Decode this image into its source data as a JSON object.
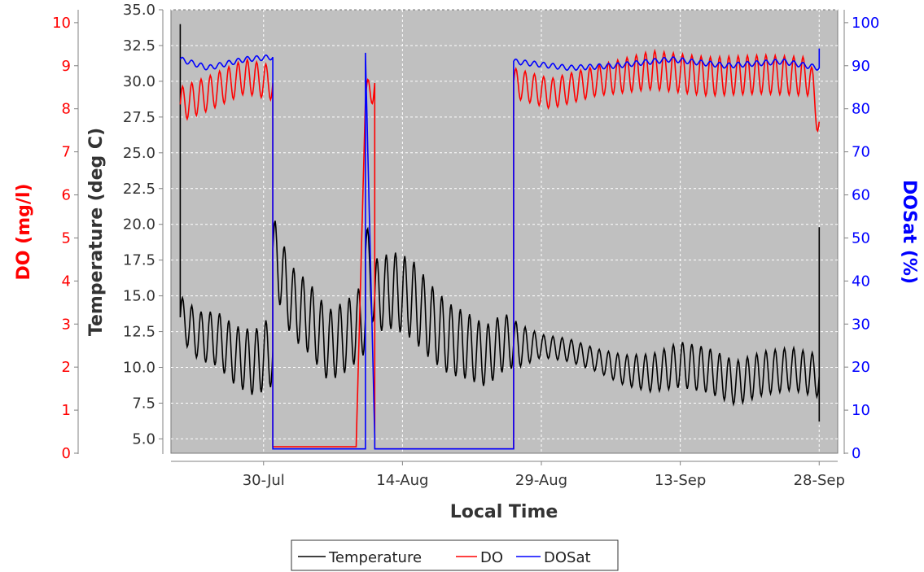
{
  "chart_data": {
    "type": "line",
    "title": "",
    "xlabel": "Local Time",
    "x_ticks": [
      "30-Jul",
      "14-Aug",
      "29-Aug",
      "13-Sep",
      "28-Sep"
    ],
    "x_range": [
      "2016-07-20",
      "2016-09-30"
    ],
    "grid": true,
    "plot_background": "#c0c0c0",
    "legend_position": "bottom-center",
    "axes": {
      "temperature": {
        "label": "Temperature (deg C)",
        "side": "left-inner",
        "range": [
          4.0,
          35.0
        ],
        "ticks": [
          "5.0",
          "7.5",
          "10.0",
          "12.5",
          "15.0",
          "17.5",
          "20.0",
          "22.5",
          "25.0",
          "27.5",
          "30.0",
          "32.5",
          "35.0"
        ],
        "color": "#333333"
      },
      "do": {
        "label": "DO (mg/l)",
        "side": "left-outer",
        "range": [
          0,
          10.3
        ],
        "ticks": [
          "0",
          "1",
          "2",
          "3",
          "4",
          "5",
          "6",
          "7",
          "8",
          "9",
          "10"
        ],
        "color": "#ff0000"
      },
      "dosat": {
        "label": "DOSat (%)",
        "side": "right",
        "range": [
          0,
          103
        ],
        "ticks": [
          "0",
          "10",
          "20",
          "30",
          "40",
          "50",
          "60",
          "70",
          "80",
          "90",
          "100"
        ],
        "color": "#0000ff"
      }
    },
    "series": [
      {
        "name": "Temperature",
        "axis": "temperature",
        "color": "#000000",
        "points": [
          [
            "2016-07-21",
            34.0
          ],
          [
            "2016-07-21",
            13.5
          ],
          [
            "2016-07-23",
            12.2
          ],
          [
            "2016-07-25",
            12.0
          ],
          [
            "2016-07-27",
            10.8
          ],
          [
            "2016-07-29",
            10.3
          ],
          [
            "2016-07-31",
            11.2
          ],
          [
            "2016-07-31",
            18.2
          ],
          [
            "2016-08-02",
            14.6
          ],
          [
            "2016-08-04",
            13.4
          ],
          [
            "2016-08-06",
            11.5
          ],
          [
            "2016-08-08",
            12.2
          ],
          [
            "2016-08-10",
            13.5
          ],
          [
            "2016-08-10",
            17.9
          ],
          [
            "2016-08-11",
            15.0
          ],
          [
            "2016-08-13",
            15.4
          ],
          [
            "2016-08-15",
            14.8
          ],
          [
            "2016-08-17",
            13.2
          ],
          [
            "2016-08-19",
            12.0
          ],
          [
            "2016-08-21",
            11.5
          ],
          [
            "2016-08-23",
            10.8
          ],
          [
            "2016-08-25",
            11.8
          ],
          [
            "2016-08-27",
            11.5
          ],
          [
            "2016-08-29",
            11.5
          ],
          [
            "2016-09-01",
            11.2
          ],
          [
            "2016-09-04",
            10.5
          ],
          [
            "2016-09-07",
            9.8
          ],
          [
            "2016-09-10",
            9.6
          ],
          [
            "2016-09-13",
            10.2
          ],
          [
            "2016-09-16",
            9.8
          ],
          [
            "2016-09-19",
            8.9
          ],
          [
            "2016-09-22",
            9.6
          ],
          [
            "2016-09-25",
            9.9
          ],
          [
            "2016-09-28",
            9.4
          ],
          [
            "2016-09-28",
            6.2
          ],
          [
            "2016-09-28",
            19.8
          ]
        ],
        "diurnal_amplitude": [
          [
            "2016-07-21",
            1.5
          ],
          [
            "2016-07-31",
            2.5
          ],
          [
            "2016-08-10",
            2.5
          ],
          [
            "2016-08-15",
            2.8
          ],
          [
            "2016-08-25",
            2.0
          ],
          [
            "2016-08-29",
            0.8
          ],
          [
            "2016-09-04",
            0.8
          ],
          [
            "2016-09-13",
            1.6
          ],
          [
            "2016-09-25",
            1.5
          ]
        ]
      },
      {
        "name": "DO",
        "axis": "do",
        "color": "#ff0000",
        "points": [
          [
            "2016-07-21",
            8.1
          ],
          [
            "2016-07-24",
            8.35
          ],
          [
            "2016-07-28",
            8.75
          ],
          [
            "2016-07-31",
            8.6
          ],
          [
            "2016-07-31",
            0.15
          ],
          [
            "2016-08-09",
            0.15
          ],
          [
            "2016-08-10",
            8.2
          ],
          [
            "2016-08-11",
            8.6
          ],
          [
            "2016-08-11",
            0.1
          ],
          [
            "2016-08-26",
            0.1
          ],
          [
            "2016-08-26",
            8.6
          ],
          [
            "2016-08-30",
            8.35
          ],
          [
            "2016-09-04",
            8.65
          ],
          [
            "2016-09-10",
            8.9
          ],
          [
            "2016-09-16",
            8.75
          ],
          [
            "2016-09-22",
            8.8
          ],
          [
            "2016-09-27",
            8.75
          ],
          [
            "2016-09-28",
            7.7
          ]
        ],
        "diurnal_amplitude": [
          [
            "2016-07-21",
            0.4
          ],
          [
            "2016-07-31",
            0.4
          ],
          [
            "2016-08-26",
            0.35
          ],
          [
            "2016-09-04",
            0.35
          ],
          [
            "2016-09-10",
            0.45
          ],
          [
            "2016-09-28",
            0.45
          ]
        ]
      },
      {
        "name": "DOSat",
        "axis": "dosat",
        "color": "#0000ff",
        "points": [
          [
            "2016-07-21",
            91.5
          ],
          [
            "2016-07-24",
            89.5
          ],
          [
            "2016-07-28",
            91.5
          ],
          [
            "2016-07-31",
            92.0
          ],
          [
            "2016-07-31",
            1.0
          ],
          [
            "2016-07-31",
            46.5
          ],
          [
            "2016-07-31",
            1.0
          ],
          [
            "2016-08-10",
            1.0
          ],
          [
            "2016-08-10",
            93.0
          ],
          [
            "2016-08-11",
            4.0
          ],
          [
            "2016-08-11",
            1.0
          ],
          [
            "2016-08-26",
            1.0
          ],
          [
            "2016-08-26",
            91.0
          ],
          [
            "2016-09-01",
            89.5
          ],
          [
            "2016-09-06",
            90.0
          ],
          [
            "2016-09-12",
            91.5
          ],
          [
            "2016-09-18",
            90.0
          ],
          [
            "2016-09-24",
            91.0
          ],
          [
            "2016-09-28",
            89.5
          ],
          [
            "2016-09-28",
            94.0
          ]
        ],
        "diurnal_amplitude": [
          [
            "2016-07-21",
            0.6
          ],
          [
            "2016-09-28",
            0.6
          ]
        ]
      }
    ]
  }
}
